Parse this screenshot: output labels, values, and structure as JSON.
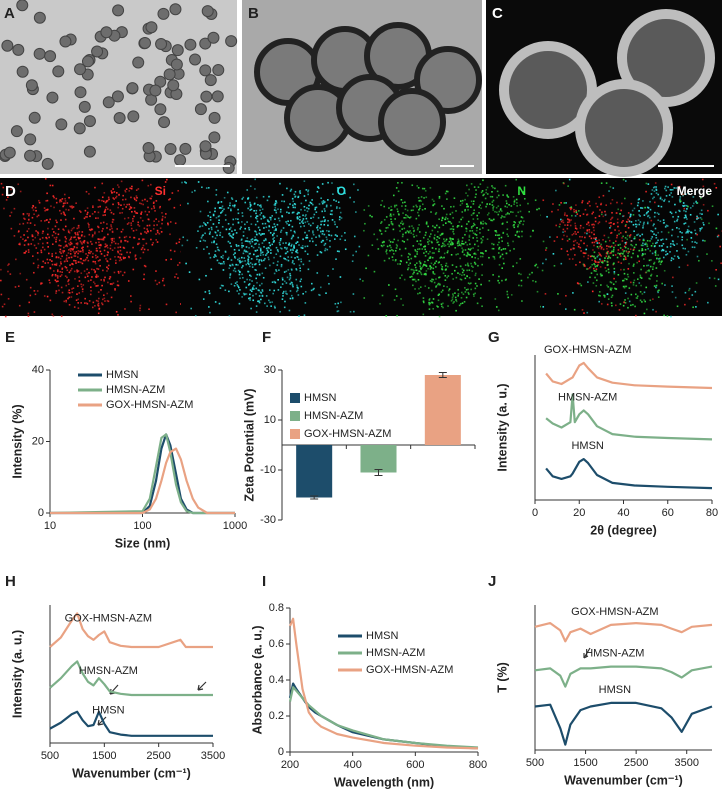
{
  "image_panels": [
    {
      "label": "A"
    },
    {
      "label": "B"
    },
    {
      "label": "C"
    },
    {
      "label": "D",
      "channels": [
        "Si",
        "O",
        "N",
        "Merge"
      ]
    }
  ],
  "chart_data": [
    {
      "type": "line",
      "panel_label": "E",
      "xscale": "log",
      "xlabel": "Size (nm)",
      "ylabel": "Intensity (%)",
      "xlim": [
        10,
        1000
      ],
      "xticks": [
        10,
        100,
        1000
      ],
      "ylim": [
        0,
        40
      ],
      "yticks": [
        0,
        20,
        40
      ],
      "legend": "upper-left",
      "x": [
        10,
        100,
        120,
        140,
        160,
        180,
        200,
        230,
        260,
        300,
        350,
        400,
        500,
        1000
      ],
      "series": [
        {
          "name": "HMSN",
          "color": "#1d4d6b",
          "values": [
            0,
            0,
            2,
            9,
            18,
            22,
            19,
            11,
            4,
            1,
            0,
            0,
            0,
            0
          ]
        },
        {
          "name": "HMSN-AZM",
          "color": "#7db089",
          "values": [
            0,
            0.5,
            4,
            13,
            21,
            22,
            17,
            8,
            3,
            0.5,
            0,
            0,
            0,
            0
          ]
        },
        {
          "name": "GOX-HMSN-AZM",
          "color": "#e9a283",
          "values": [
            0,
            0,
            1,
            4,
            9,
            14,
            17,
            18,
            15,
            9,
            4,
            1.5,
            0,
            0
          ]
        }
      ]
    },
    {
      "type": "bar",
      "panel_label": "F",
      "ylabel": "Zeta Potential (mV)",
      "legend": "upper-left",
      "ylim": [
        -30,
        30
      ],
      "yticks": [
        -30,
        -10,
        10,
        30
      ],
      "categories": [
        "HMSN",
        "HMSN-AZM",
        "GOX-HMSN-AZM"
      ],
      "colors": [
        "#1d4d6b",
        "#7db089",
        "#e9a283"
      ],
      "values": [
        -21,
        -11,
        28
      ],
      "errors": [
        0.6,
        1.2,
        1
      ]
    },
    {
      "type": "line",
      "panel_label": "G",
      "xlabel": "2θ (degree)",
      "ylabel": "Intensity (a. u.)",
      "legend": "inline",
      "xlim": [
        0,
        80
      ],
      "xticks": [
        0,
        20,
        40,
        60,
        80
      ],
      "ylim": [
        0,
        11
      ],
      "x": [
        5,
        8,
        12,
        16,
        17,
        18,
        20,
        22,
        24,
        28,
        35,
        45,
        60,
        80
      ],
      "series": [
        {
          "name": "GOX-HMSN-AZM",
          "color": "#e9a283",
          "values": [
            9.6,
            9.0,
            8.8,
            9.2,
            9.3,
            9.6,
            10.2,
            10.4,
            10.0,
            9.3,
            8.9,
            8.7,
            8.6,
            8.5
          ]
        },
        {
          "name": "HMSN-AZM",
          "color": "#7db089",
          "values": [
            6.2,
            5.8,
            5.5,
            5.9,
            8.0,
            5.9,
            6.5,
            6.8,
            6.5,
            5.6,
            5.0,
            4.8,
            4.7,
            4.6
          ]
        },
        {
          "name": "HMSN",
          "color": "#1d4d6b",
          "values": [
            2.4,
            1.8,
            1.6,
            1.8,
            2.0,
            2.3,
            2.9,
            3.1,
            2.8,
            1.9,
            1.3,
            1.1,
            1.0,
            0.9
          ]
        }
      ]
    },
    {
      "type": "line",
      "panel_label": "H",
      "xlabel": "Wavenumber (cm⁻¹)",
      "ylabel": "Intensity (a. u.)",
      "legend": "inline",
      "xlim": [
        500,
        3500
      ],
      "xticks": [
        500,
        1500,
        2500,
        3500
      ],
      "ylim": [
        0,
        11.5
      ],
      "x": [
        500,
        700,
        900,
        1000,
        1100,
        1200,
        1300,
        1400,
        1500,
        1600,
        1800,
        2000,
        2500,
        2900,
        3000,
        3500
      ],
      "series": [
        {
          "name": "GOX-HMSN-AZM",
          "color": "#e9a283",
          "values": [
            8.0,
            8.8,
            10.2,
            10.8,
            9.5,
            8.9,
            8.6,
            9.0,
            9.3,
            8.4,
            8.1,
            8.0,
            8.0,
            8.6,
            8.0,
            8.0
          ]
        },
        {
          "name": "HMSN-AZM",
          "color": "#7db089",
          "values": [
            4.6,
            5.4,
            6.4,
            6.8,
            5.8,
            5.1,
            4.8,
            5.4,
            4.9,
            4.3,
            4.1,
            4.0,
            4.0,
            4.0,
            4.0,
            4.0
          ]
        },
        {
          "name": "HMSN",
          "color": "#1d4d6b",
          "values": [
            1.2,
            1.7,
            2.4,
            2.6,
            1.9,
            1.4,
            1.5,
            2.6,
            1.6,
            0.9,
            0.7,
            0.6,
            0.6,
            0.6,
            0.6,
            0.6
          ]
        }
      ]
    },
    {
      "type": "line",
      "panel_label": "I",
      "xlabel": "Wavelength (nm)",
      "ylabel": "Absorbance (a. u.)",
      "legend": "upper-right",
      "xlim": [
        200,
        800
      ],
      "xticks": [
        200,
        400,
        600,
        800
      ],
      "ylim": [
        0,
        0.8
      ],
      "yticks": [
        0,
        0.2,
        0.4,
        0.6,
        0.8
      ],
      "x": [
        200,
        210,
        220,
        240,
        260,
        280,
        300,
        350,
        400,
        500,
        600,
        700,
        800
      ],
      "series": [
        {
          "name": "HMSN",
          "color": "#1d4d6b",
          "values": [
            0.3,
            0.38,
            0.35,
            0.3,
            0.25,
            0.22,
            0.2,
            0.15,
            0.11,
            0.07,
            0.05,
            0.03,
            0.02
          ]
        },
        {
          "name": "HMSN-AZM",
          "color": "#7db089",
          "values": [
            0.28,
            0.36,
            0.34,
            0.3,
            0.26,
            0.23,
            0.2,
            0.15,
            0.12,
            0.07,
            0.05,
            0.035,
            0.025
          ]
        },
        {
          "name": "GOX-HMSN-AZM",
          "color": "#e9a283",
          "values": [
            0.7,
            0.74,
            0.6,
            0.35,
            0.22,
            0.17,
            0.14,
            0.1,
            0.08,
            0.05,
            0.035,
            0.025,
            0.02
          ]
        }
      ]
    },
    {
      "type": "line",
      "panel_label": "J",
      "xlabel": "Wavenumber (cm⁻¹)",
      "ylabel": "T (%)",
      "legend": "inline",
      "xlim": [
        500,
        4000
      ],
      "xticks": [
        500,
        1500,
        2500,
        3500
      ],
      "ylim": [
        0,
        8
      ],
      "x": [
        500,
        800,
        1000,
        1100,
        1200,
        1400,
        1600,
        2000,
        2500,
        3000,
        3200,
        3400,
        3600,
        4000
      ],
      "series": [
        {
          "name": "GOX-HMSN-AZM",
          "color": "#e9a283",
          "values": [
            6.8,
            7.0,
            6.6,
            6.0,
            6.5,
            6.7,
            6.4,
            6.9,
            7.0,
            6.9,
            6.7,
            6.5,
            6.8,
            6.9
          ]
        },
        {
          "name": "HMSN-AZM",
          "color": "#7db089",
          "values": [
            4.4,
            4.5,
            4.1,
            3.5,
            4.2,
            4.5,
            4.5,
            4.6,
            4.6,
            4.5,
            4.3,
            4.0,
            4.4,
            4.6
          ]
        },
        {
          "name": "HMSN",
          "color": "#1d4d6b",
          "values": [
            2.4,
            2.5,
            1.2,
            0.3,
            1.4,
            2.2,
            2.4,
            2.6,
            2.6,
            2.3,
            1.8,
            1.0,
            2.0,
            2.4
          ]
        }
      ]
    }
  ]
}
